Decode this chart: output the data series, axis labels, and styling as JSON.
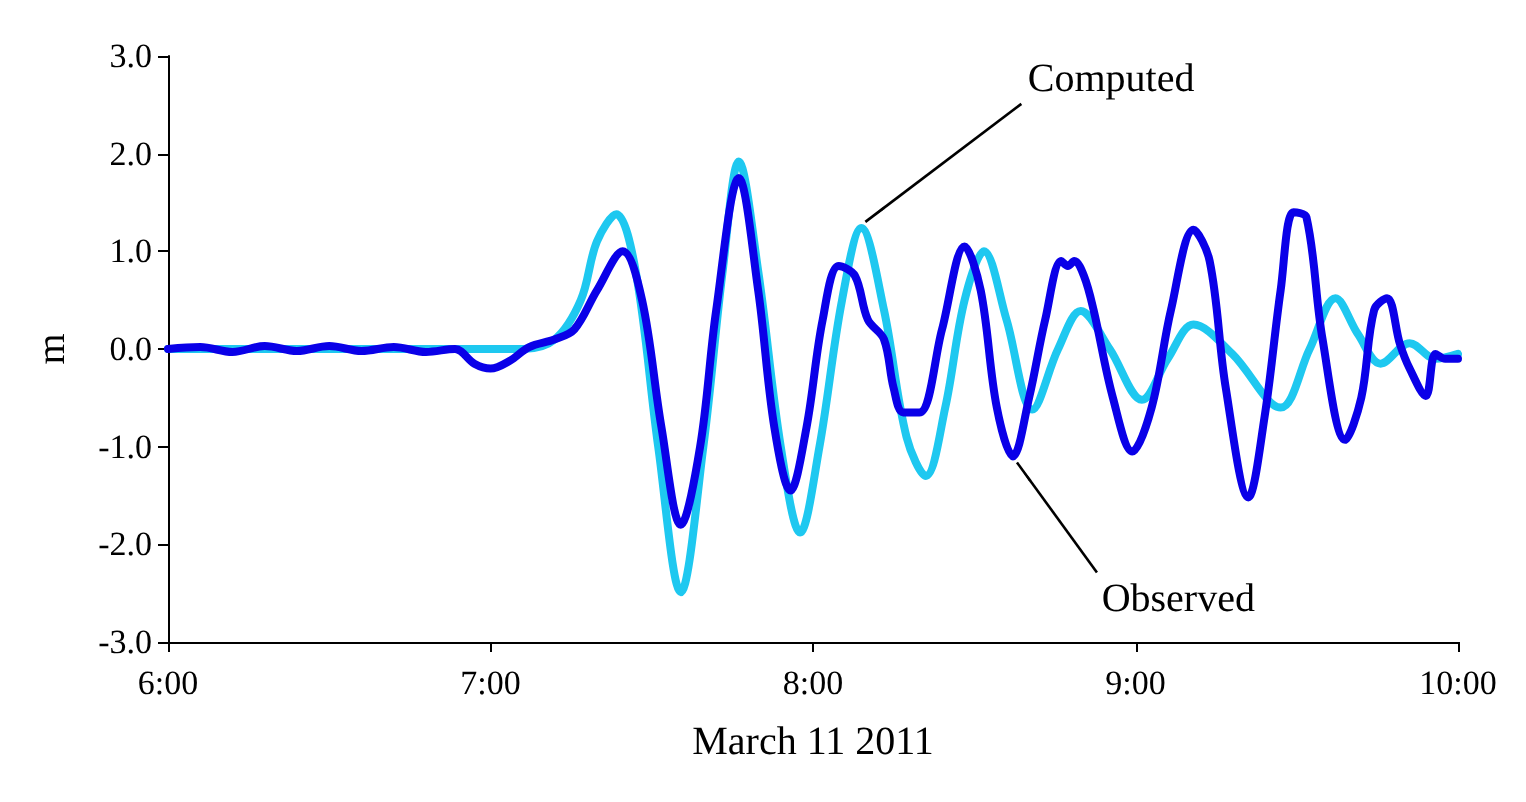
{
  "chart_data": {
    "type": "line",
    "xlabel": "March 11 2011",
    "ylabel": "m",
    "xlim": [
      6,
      10
    ],
    "xticks": [
      {
        "value": 6,
        "label": "6:00"
      },
      {
        "value": 7,
        "label": "7:00"
      },
      {
        "value": 8,
        "label": "8:00"
      },
      {
        "value": 9,
        "label": "9:00"
      },
      {
        "value": 10,
        "label": "10:00"
      }
    ],
    "ylim": [
      -3,
      3
    ],
    "yticks": [
      {
        "value": -3,
        "label": "-3.0"
      },
      {
        "value": -2,
        "label": "-2.0"
      },
      {
        "value": -1,
        "label": "-1.0"
      },
      {
        "value": 0,
        "label": "0.0"
      },
      {
        "value": 1,
        "label": "1.0"
      },
      {
        "value": 2,
        "label": "2.0"
      },
      {
        "value": 3,
        "label": "3.0"
      }
    ],
    "grid": false,
    "marker": "none",
    "line_style": "solid",
    "annotations": [
      {
        "text": "Computed",
        "x": 8.15,
        "y": 1.24
      },
      {
        "text": "Observed",
        "x": 8.62,
        "y": -1.1
      }
    ],
    "series": [
      {
        "color": "#0a00e8",
        "x": [
          6.0,
          6.1,
          6.2,
          6.3,
          6.4,
          6.5,
          6.6,
          6.7,
          6.8,
          6.89,
          6.95,
          7.0,
          7.06,
          7.12,
          7.2,
          7.26,
          7.33,
          7.41,
          7.47,
          7.53,
          7.59,
          7.65,
          7.7,
          7.77,
          7.83,
          7.88,
          7.93,
          7.98,
          8.03,
          8.08,
          8.13,
          8.17,
          8.22,
          8.25,
          8.28,
          8.33,
          8.4,
          8.47,
          8.52,
          8.57,
          8.62,
          8.67,
          8.72,
          8.77,
          8.79,
          8.81,
          8.84,
          8.87,
          8.93,
          8.99,
          9.05,
          9.11,
          9.18,
          9.23,
          9.28,
          9.35,
          9.4,
          9.45,
          9.49,
          9.53,
          9.58,
          9.65,
          9.7,
          9.74,
          9.78,
          9.82,
          9.85,
          9.9,
          9.93,
          9.96,
          10.0
        ],
        "values": [
          0,
          0.02,
          -0.03,
          0.03,
          -0.02,
          0.03,
          -0.02,
          0.02,
          -0.03,
          0,
          -0.15,
          -0.2,
          -0.12,
          0.02,
          0.1,
          0.2,
          0.6,
          1.0,
          0.5,
          -0.8,
          -1.8,
          -1.0,
          0.4,
          1.75,
          0.6,
          -0.8,
          -1.45,
          -0.8,
          0.3,
          0.85,
          0.75,
          0.3,
          0.1,
          -0.4,
          -0.65,
          -0.65,
          0.2,
          1.05,
          0.6,
          -0.6,
          -1.1,
          -0.5,
          0.3,
          0.9,
          0.85,
          0.9,
          0.75,
          0.4,
          -0.5,
          -1.05,
          -0.6,
          0.4,
          1.22,
          0.9,
          -0.4,
          -1.52,
          -0.7,
          0.6,
          1.4,
          1.35,
          0.1,
          -0.93,
          -0.5,
          0.4,
          0.52,
          0.05,
          -0.2,
          -0.48,
          -0.05,
          -0.1,
          -0.1
        ]
      },
      {
        "color": "#1ec8f0",
        "x": [
          6.0,
          7.1,
          7.2,
          7.28,
          7.33,
          7.39,
          7.45,
          7.52,
          7.59,
          7.66,
          7.72,
          7.77,
          7.83,
          7.9,
          7.96,
          8.02,
          8.09,
          8.15,
          8.22,
          8.29,
          8.35,
          8.41,
          8.47,
          8.53,
          8.6,
          8.68,
          8.76,
          8.83,
          8.92,
          9.02,
          9.1,
          9.18,
          9.3,
          9.45,
          9.54,
          9.62,
          9.69,
          9.76,
          9.85,
          9.93,
          10.0
        ],
        "values": [
          0,
          0,
          0.1,
          0.5,
          1.1,
          1.38,
          0.8,
          -1.0,
          -2.49,
          -1.0,
          0.8,
          1.92,
          0.8,
          -1.0,
          -1.88,
          -1.0,
          0.5,
          1.24,
          0.4,
          -0.9,
          -1.3,
          -0.6,
          0.5,
          1.0,
          0.3,
          -0.62,
          0.0,
          0.39,
          0.0,
          -0.52,
          -0.1,
          0.25,
          -0.05,
          -0.6,
          0.0,
          0.52,
          0.15,
          -0.15,
          0.06,
          -0.1,
          -0.05
        ]
      }
    ]
  }
}
